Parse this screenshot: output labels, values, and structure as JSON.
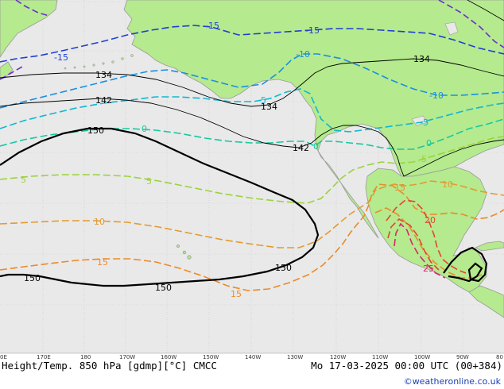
{
  "footer": {
    "left": "Height/Temp. 850 hPa [gdmp][°C] CMCC",
    "right": "Mo 17-03-2025 00:00 UTC (00+384)",
    "credit": "©weatheronline.co.uk"
  },
  "longitudes": [
    "0E",
    "170E",
    "180",
    "170W",
    "160W",
    "150W",
    "140W",
    "130W",
    "120W",
    "110W",
    "100W",
    "90W",
    "80"
  ],
  "height_labels": {
    "h134": "134",
    "h142": "142",
    "h150": "150"
  },
  "temp_labels": {
    "m15": "-15",
    "m10": "-10",
    "m5": "-5",
    "t0": "0",
    "t5": "5",
    "t10": "10",
    "t15": "15",
    "t20": "20",
    "t25": "25"
  },
  "colors": {
    "ocean": "#e9e9e9",
    "land": "#b5ea8e",
    "coast": "#9a9a9a",
    "height": "#000000",
    "m15": "#1f3fd1",
    "m10": "#1b8fe0",
    "m5": "#12b7d0",
    "t0": "#18c8a0",
    "t5": "#9ad33c",
    "t10": "#e39a30",
    "t15": "#ec8a28",
    "t20": "#e2462e",
    "t25": "#d8266a",
    "purple": "#6b2fd0"
  }
}
